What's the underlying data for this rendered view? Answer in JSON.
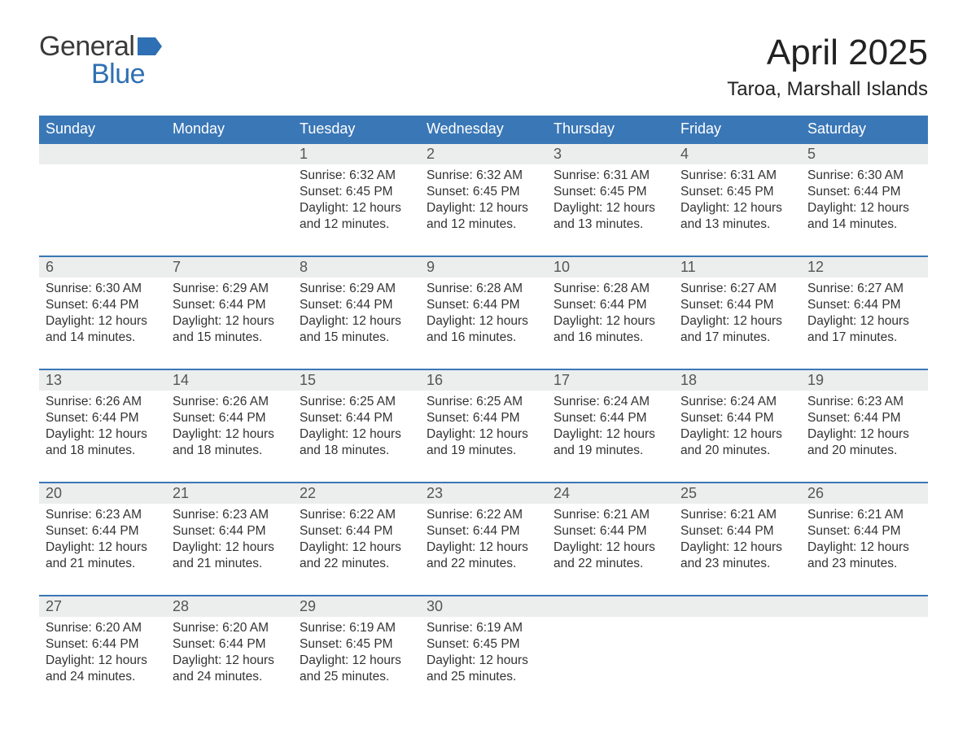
{
  "logo": {
    "word1": "General",
    "word2": "Blue"
  },
  "title": {
    "month": "April 2025",
    "location": "Taroa, Marshall Islands"
  },
  "colors": {
    "header_bg": "#3a77b6",
    "header_text": "#ffffff",
    "daynum_bg": "#eceded",
    "week_border": "#3a77b6",
    "logo_gray": "#3a3a3a",
    "logo_blue": "#2f6fb3",
    "logo_flag": "#2f6fb3",
    "body_text": "#333333",
    "page_bg": "#ffffff"
  },
  "typography": {
    "month_fontsize": 44,
    "location_fontsize": 24,
    "dayhead_fontsize": 18,
    "daynum_fontsize": 18,
    "cell_fontsize": 15.5,
    "logo_fontsize": 34
  },
  "labels": {
    "sunrise": "Sunrise: ",
    "sunset": "Sunset: ",
    "daylight": "Daylight: "
  },
  "day_headers": [
    "Sunday",
    "Monday",
    "Tuesday",
    "Wednesday",
    "Thursday",
    "Friday",
    "Saturday"
  ],
  "weeks": [
    [
      null,
      null,
      {
        "num": "1",
        "sunrise": "6:32 AM",
        "sunset": "6:45 PM",
        "daylight": "12 hours and 12 minutes."
      },
      {
        "num": "2",
        "sunrise": "6:32 AM",
        "sunset": "6:45 PM",
        "daylight": "12 hours and 12 minutes."
      },
      {
        "num": "3",
        "sunrise": "6:31 AM",
        "sunset": "6:45 PM",
        "daylight": "12 hours and 13 minutes."
      },
      {
        "num": "4",
        "sunrise": "6:31 AM",
        "sunset": "6:45 PM",
        "daylight": "12 hours and 13 minutes."
      },
      {
        "num": "5",
        "sunrise": "6:30 AM",
        "sunset": "6:44 PM",
        "daylight": "12 hours and 14 minutes."
      }
    ],
    [
      {
        "num": "6",
        "sunrise": "6:30 AM",
        "sunset": "6:44 PM",
        "daylight": "12 hours and 14 minutes."
      },
      {
        "num": "7",
        "sunrise": "6:29 AM",
        "sunset": "6:44 PM",
        "daylight": "12 hours and 15 minutes."
      },
      {
        "num": "8",
        "sunrise": "6:29 AM",
        "sunset": "6:44 PM",
        "daylight": "12 hours and 15 minutes."
      },
      {
        "num": "9",
        "sunrise": "6:28 AM",
        "sunset": "6:44 PM",
        "daylight": "12 hours and 16 minutes."
      },
      {
        "num": "10",
        "sunrise": "6:28 AM",
        "sunset": "6:44 PM",
        "daylight": "12 hours and 16 minutes."
      },
      {
        "num": "11",
        "sunrise": "6:27 AM",
        "sunset": "6:44 PM",
        "daylight": "12 hours and 17 minutes."
      },
      {
        "num": "12",
        "sunrise": "6:27 AM",
        "sunset": "6:44 PM",
        "daylight": "12 hours and 17 minutes."
      }
    ],
    [
      {
        "num": "13",
        "sunrise": "6:26 AM",
        "sunset": "6:44 PM",
        "daylight": "12 hours and 18 minutes."
      },
      {
        "num": "14",
        "sunrise": "6:26 AM",
        "sunset": "6:44 PM",
        "daylight": "12 hours and 18 minutes."
      },
      {
        "num": "15",
        "sunrise": "6:25 AM",
        "sunset": "6:44 PM",
        "daylight": "12 hours and 18 minutes."
      },
      {
        "num": "16",
        "sunrise": "6:25 AM",
        "sunset": "6:44 PM",
        "daylight": "12 hours and 19 minutes."
      },
      {
        "num": "17",
        "sunrise": "6:24 AM",
        "sunset": "6:44 PM",
        "daylight": "12 hours and 19 minutes."
      },
      {
        "num": "18",
        "sunrise": "6:24 AM",
        "sunset": "6:44 PM",
        "daylight": "12 hours and 20 minutes."
      },
      {
        "num": "19",
        "sunrise": "6:23 AM",
        "sunset": "6:44 PM",
        "daylight": "12 hours and 20 minutes."
      }
    ],
    [
      {
        "num": "20",
        "sunrise": "6:23 AM",
        "sunset": "6:44 PM",
        "daylight": "12 hours and 21 minutes."
      },
      {
        "num": "21",
        "sunrise": "6:23 AM",
        "sunset": "6:44 PM",
        "daylight": "12 hours and 21 minutes."
      },
      {
        "num": "22",
        "sunrise": "6:22 AM",
        "sunset": "6:44 PM",
        "daylight": "12 hours and 22 minutes."
      },
      {
        "num": "23",
        "sunrise": "6:22 AM",
        "sunset": "6:44 PM",
        "daylight": "12 hours and 22 minutes."
      },
      {
        "num": "24",
        "sunrise": "6:21 AM",
        "sunset": "6:44 PM",
        "daylight": "12 hours and 22 minutes."
      },
      {
        "num": "25",
        "sunrise": "6:21 AM",
        "sunset": "6:44 PM",
        "daylight": "12 hours and 23 minutes."
      },
      {
        "num": "26",
        "sunrise": "6:21 AM",
        "sunset": "6:44 PM",
        "daylight": "12 hours and 23 minutes."
      }
    ],
    [
      {
        "num": "27",
        "sunrise": "6:20 AM",
        "sunset": "6:44 PM",
        "daylight": "12 hours and 24 minutes."
      },
      {
        "num": "28",
        "sunrise": "6:20 AM",
        "sunset": "6:44 PM",
        "daylight": "12 hours and 24 minutes."
      },
      {
        "num": "29",
        "sunrise": "6:19 AM",
        "sunset": "6:45 PM",
        "daylight": "12 hours and 25 minutes."
      },
      {
        "num": "30",
        "sunrise": "6:19 AM",
        "sunset": "6:45 PM",
        "daylight": "12 hours and 25 minutes."
      },
      null,
      null,
      null
    ]
  ]
}
